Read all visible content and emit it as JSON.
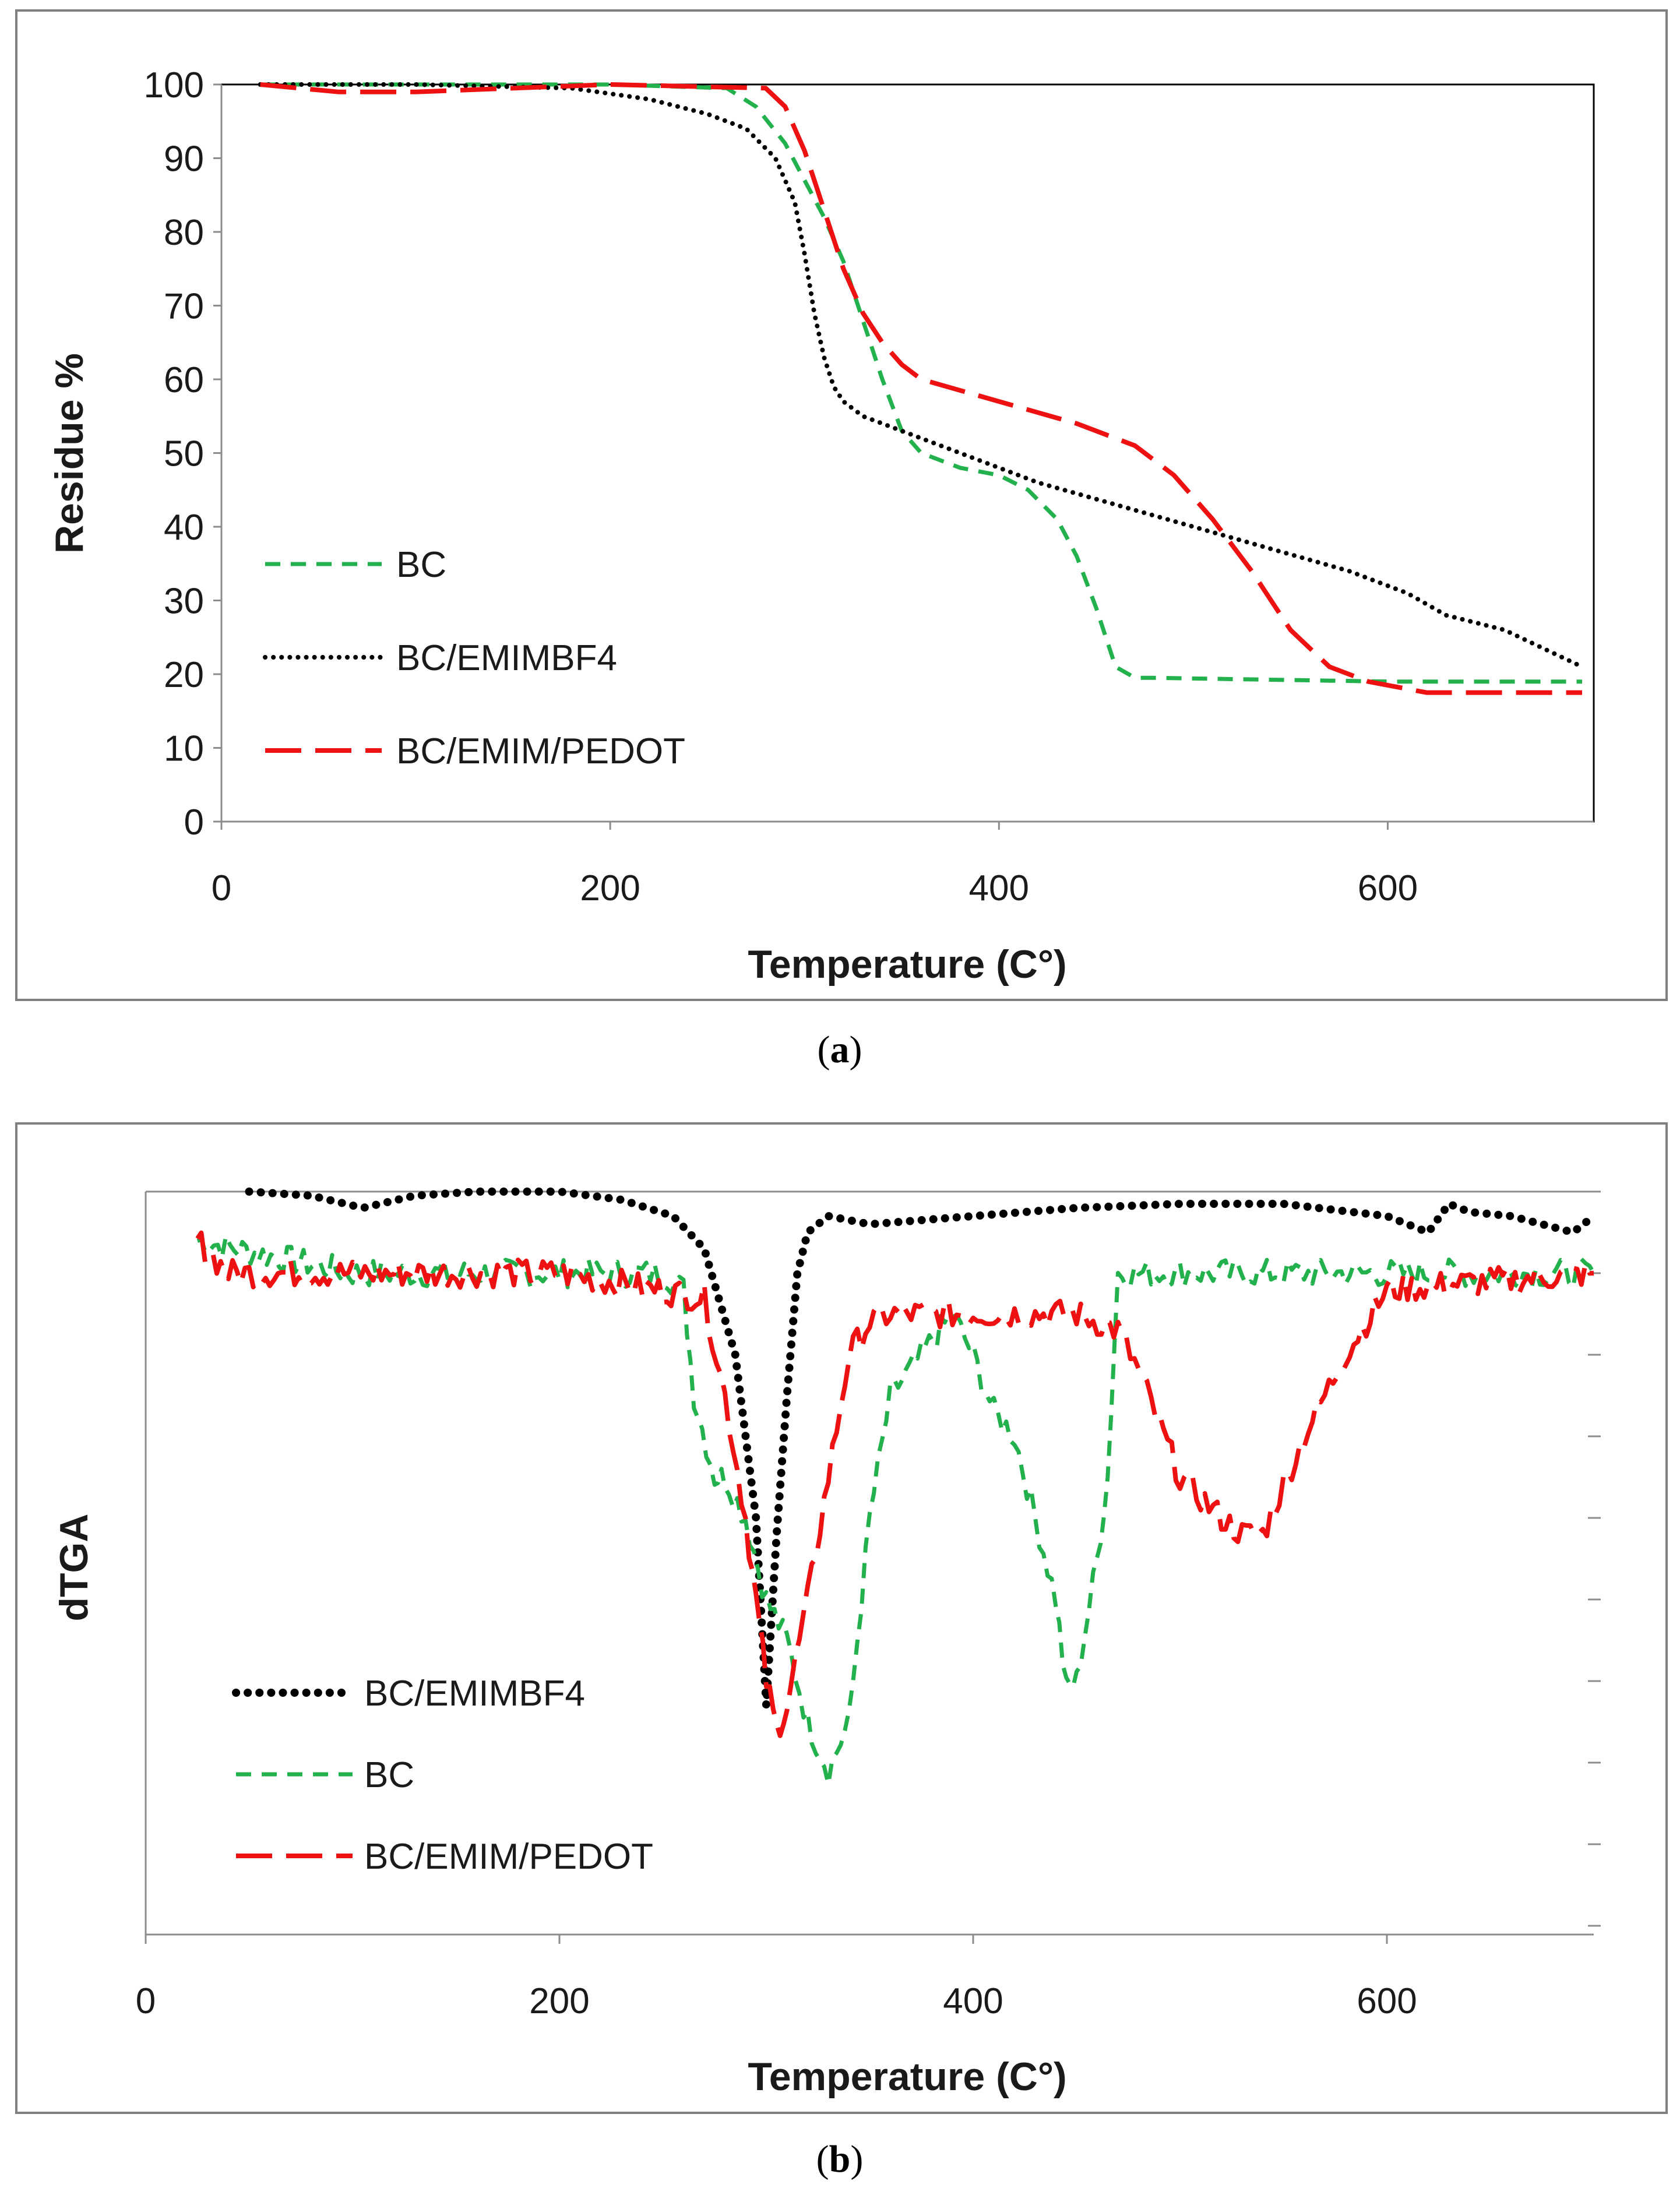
{
  "colors": {
    "bc": "#22b14c",
    "emimbf4": "#000000",
    "pedot": "#ee1111"
  },
  "chart_data": [
    {
      "type": "line",
      "caption": "a",
      "xlabel": "Temperature (C°)",
      "ylabel": "Residue %",
      "xlim": [
        0,
        700
      ],
      "ylim": [
        0,
        100
      ],
      "xticks": [
        0,
        200,
        400,
        600
      ],
      "yticks": [
        0,
        10,
        20,
        30,
        40,
        50,
        60,
        70,
        80,
        90,
        100
      ],
      "legend_position": "bottom-left",
      "series": [
        {
          "name": "BC",
          "style": "dashed",
          "color": "#22b14c",
          "x": [
            20,
            100,
            200,
            260,
            275,
            290,
            300,
            310,
            320,
            330,
            340,
            350,
            360,
            380,
            400,
            415,
            430,
            440,
            450,
            460,
            470,
            480,
            600,
            700
          ],
          "y": [
            100,
            100,
            100,
            99.5,
            97,
            92,
            87,
            82,
            76,
            68,
            60,
            53,
            50,
            48,
            47,
            45,
            41,
            36,
            29,
            21,
            19.5,
            19.5,
            19,
            19
          ]
        },
        {
          "name": "BC/EMIMBF4",
          "style": "dotted",
          "color": "#000000",
          "x": [
            20,
            100,
            180,
            220,
            250,
            270,
            285,
            295,
            300,
            305,
            310,
            315,
            320,
            330,
            350,
            380,
            420,
            460,
            500,
            540,
            580,
            610,
            630,
            660,
            700
          ],
          "y": [
            100,
            100,
            99.5,
            98,
            96,
            94,
            90,
            84,
            77,
            69,
            63,
            59,
            57,
            55,
            53,
            50,
            46,
            43,
            40,
            37,
            34,
            31,
            28,
            26,
            21
          ]
        },
        {
          "name": "BC/EMIM/PEDOT",
          "style": "longdash",
          "color": "#ee1111",
          "x": [
            20,
            60,
            100,
            200,
            280,
            290,
            300,
            310,
            320,
            330,
            340,
            350,
            360,
            400,
            440,
            470,
            490,
            510,
            530,
            550,
            570,
            590,
            620,
            650,
            700
          ],
          "y": [
            100,
            99,
            99,
            100,
            99.5,
            97,
            91,
            83,
            75,
            69,
            65,
            62,
            60,
            57,
            54,
            51,
            47,
            41,
            34,
            26,
            21,
            19,
            17.5,
            17.5,
            17.5
          ]
        }
      ]
    },
    {
      "type": "line",
      "caption": "b",
      "xlabel": "Temperature (C°)",
      "ylabel": "dTGA",
      "xlim": [
        0,
        700
      ],
      "xticks": [
        0,
        200,
        400,
        600
      ],
      "y_units": "arbitrary (no tick labels)",
      "legend_position": "bottom-left",
      "series": [
        {
          "name": "BC/EMIMBF4",
          "style": "dotted",
          "color": "#000000",
          "x": [
            50,
            80,
            105,
            130,
            160,
            200,
            230,
            255,
            270,
            285,
            295,
            300,
            305,
            310,
            315,
            320,
            330,
            350,
            400,
            450,
            500,
            550,
            600,
            620,
            630,
            640,
            660,
            690,
            700
          ],
          "y": [
            0,
            -0.05,
            -0.2,
            -0.05,
            0,
            0,
            -0.1,
            -0.3,
            -0.7,
            -2,
            -4,
            -6.3,
            -4.2,
            -2.5,
            -1,
            -0.5,
            -0.3,
            -0.4,
            -0.3,
            -0.2,
            -0.15,
            -0.15,
            -0.3,
            -0.5,
            -0.15,
            -0.25,
            -0.3,
            -0.5,
            -0.3
          ]
        },
        {
          "name": "BC",
          "style": "dashed",
          "color": "#22b14c",
          "x": [
            25,
            100,
            200,
            250,
            260,
            265,
            275,
            280,
            290,
            300,
            310,
            320,
            330,
            340,
            350,
            360,
            375,
            390,
            400,
            410,
            420,
            430,
            440,
            445,
            450,
            460,
            465,
            470,
            480,
            500,
            600,
            700
          ],
          "y": [
            -0.6,
            -1,
            -1,
            -1,
            -1.2,
            -2.5,
            -3.5,
            -3.5,
            -4,
            -5,
            -5.5,
            -6.5,
            -7.1,
            -6.5,
            -4,
            -2.5,
            -2,
            -1.5,
            -2,
            -2.7,
            -3,
            -4,
            -5,
            -6.1,
            -6,
            -4.5,
            -3.5,
            -1,
            -1,
            -1,
            -1,
            -1
          ]
        },
        {
          "name": "BC/EMIM/PEDOT",
          "style": "longdash",
          "color": "#ee1111",
          "x": [
            25,
            40,
            100,
            200,
            270,
            280,
            290,
            295,
            300,
            305,
            310,
            320,
            330,
            340,
            350,
            360,
            400,
            450,
            470,
            480,
            500,
            520,
            530,
            540,
            560,
            580,
            600,
            700
          ],
          "y": [
            -0.6,
            -1,
            -1,
            -1,
            -1.3,
            -2.5,
            -4,
            -5,
            -6,
            -6.6,
            -6.3,
            -5,
            -3.5,
            -2,
            -1.6,
            -1.5,
            -1.5,
            -1.5,
            -1.7,
            -2.2,
            -3.5,
            -4,
            -4.2,
            -4.2,
            -3,
            -2,
            -1.2,
            -1
          ]
        }
      ]
    }
  ]
}
